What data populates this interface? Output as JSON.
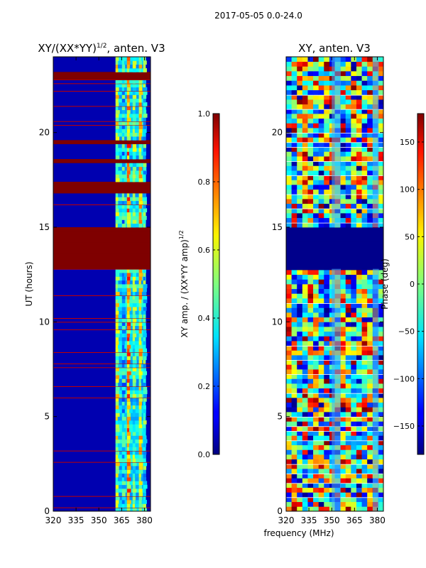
{
  "suptitle": "2017-05-05 0.0-24.0",
  "chart_data": [
    {
      "type": "heatmap",
      "title_main": "XY/(XX*YY)",
      "title_sup": "1/2",
      "title_tail": ", anten. V3",
      "ylabel": "UT (hours)",
      "xlim": [
        320,
        384
      ],
      "ylim": [
        0,
        24
      ],
      "xticks": [
        320,
        335,
        350,
        365,
        380
      ],
      "yticks": [
        0,
        5,
        10,
        15,
        20
      ],
      "colormap": "jet",
      "colorbar": {
        "label_main": "XY amp. / (XX*YY amp)",
        "label_sup": "1/2",
        "range": [
          0.0,
          1.0
        ],
        "ticks": [
          "0.0",
          "0.2",
          "0.4",
          "0.6",
          "0.8",
          "1.0"
        ],
        "tick_values": [
          0.0,
          0.2,
          0.4,
          0.6,
          0.8,
          1.0
        ]
      },
      "saturated_bands_hours": [
        [
          12.8,
          15.0
        ],
        [
          16.9,
          17.4
        ],
        [
          18.4,
          18.6
        ],
        [
          19.4,
          19.6
        ],
        [
          22.9,
          23.2
        ]
      ],
      "bright_freq_band_mhz": [
        361,
        381
      ]
    },
    {
      "type": "heatmap",
      "title": "XY, anten. V3",
      "xlabel": "frequency (MHz)",
      "xlim": [
        320,
        384
      ],
      "ylim": [
        0,
        24
      ],
      "xticks": [
        320,
        335,
        350,
        365,
        380
      ],
      "yticks": [
        0,
        5,
        10,
        15,
        20
      ],
      "colormap": "jet",
      "colorbar": {
        "label": "Phase (deg)",
        "range": [
          -180,
          180
        ],
        "ticks": [
          "−150",
          "−100",
          "−50",
          "0",
          "50",
          "100",
          "150"
        ],
        "tick_values": [
          -150,
          -100,
          -50,
          0,
          50,
          100,
          150
        ]
      },
      "flagged_band_hours": [
        12.8,
        15.0
      ]
    }
  ]
}
